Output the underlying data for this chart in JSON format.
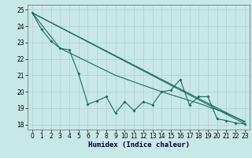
{
  "xlabel": "Humidex (Indice chaleur)",
  "xlim": [
    -0.5,
    23.5
  ],
  "ylim": [
    17.7,
    25.3
  ],
  "yticks": [
    18,
    19,
    20,
    21,
    22,
    23,
    24,
    25
  ],
  "xticks": [
    0,
    1,
    2,
    3,
    4,
    5,
    6,
    7,
    8,
    9,
    10,
    11,
    12,
    13,
    14,
    15,
    16,
    17,
    18,
    19,
    20,
    21,
    22,
    23
  ],
  "bg_color": "#c8e8e8",
  "grid_color": "#b0d0d0",
  "line_color": "#1a6b5a",
  "main_line": [
    [
      0,
      24.8
    ],
    [
      1,
      23.8
    ],
    [
      2,
      23.1
    ],
    [
      3,
      22.65
    ],
    [
      4,
      22.55
    ],
    [
      5,
      21.1
    ],
    [
      6,
      19.25
    ],
    [
      7,
      19.45
    ],
    [
      8,
      19.7
    ],
    [
      9,
      18.7
    ],
    [
      10,
      19.4
    ],
    [
      11,
      18.85
    ],
    [
      12,
      19.4
    ],
    [
      13,
      19.2
    ],
    [
      14,
      20.0
    ],
    [
      15,
      20.1
    ],
    [
      16,
      20.75
    ],
    [
      17,
      19.2
    ],
    [
      18,
      19.7
    ],
    [
      19,
      19.7
    ],
    [
      20,
      18.35
    ],
    [
      21,
      18.25
    ],
    [
      22,
      18.1
    ],
    [
      23,
      18.05
    ]
  ],
  "trend_line1": [
    [
      0,
      24.8
    ],
    [
      23,
      18.05
    ]
  ],
  "trend_line2": [
    [
      0,
      24.8
    ],
    [
      23,
      18.15
    ]
  ],
  "trend_line3": [
    [
      0,
      24.8
    ],
    [
      3,
      22.65
    ],
    [
      5,
      22.1
    ],
    [
      9,
      21.0
    ],
    [
      14,
      20.0
    ],
    [
      18,
      19.3
    ],
    [
      21,
      18.7
    ],
    [
      23,
      18.2
    ]
  ]
}
